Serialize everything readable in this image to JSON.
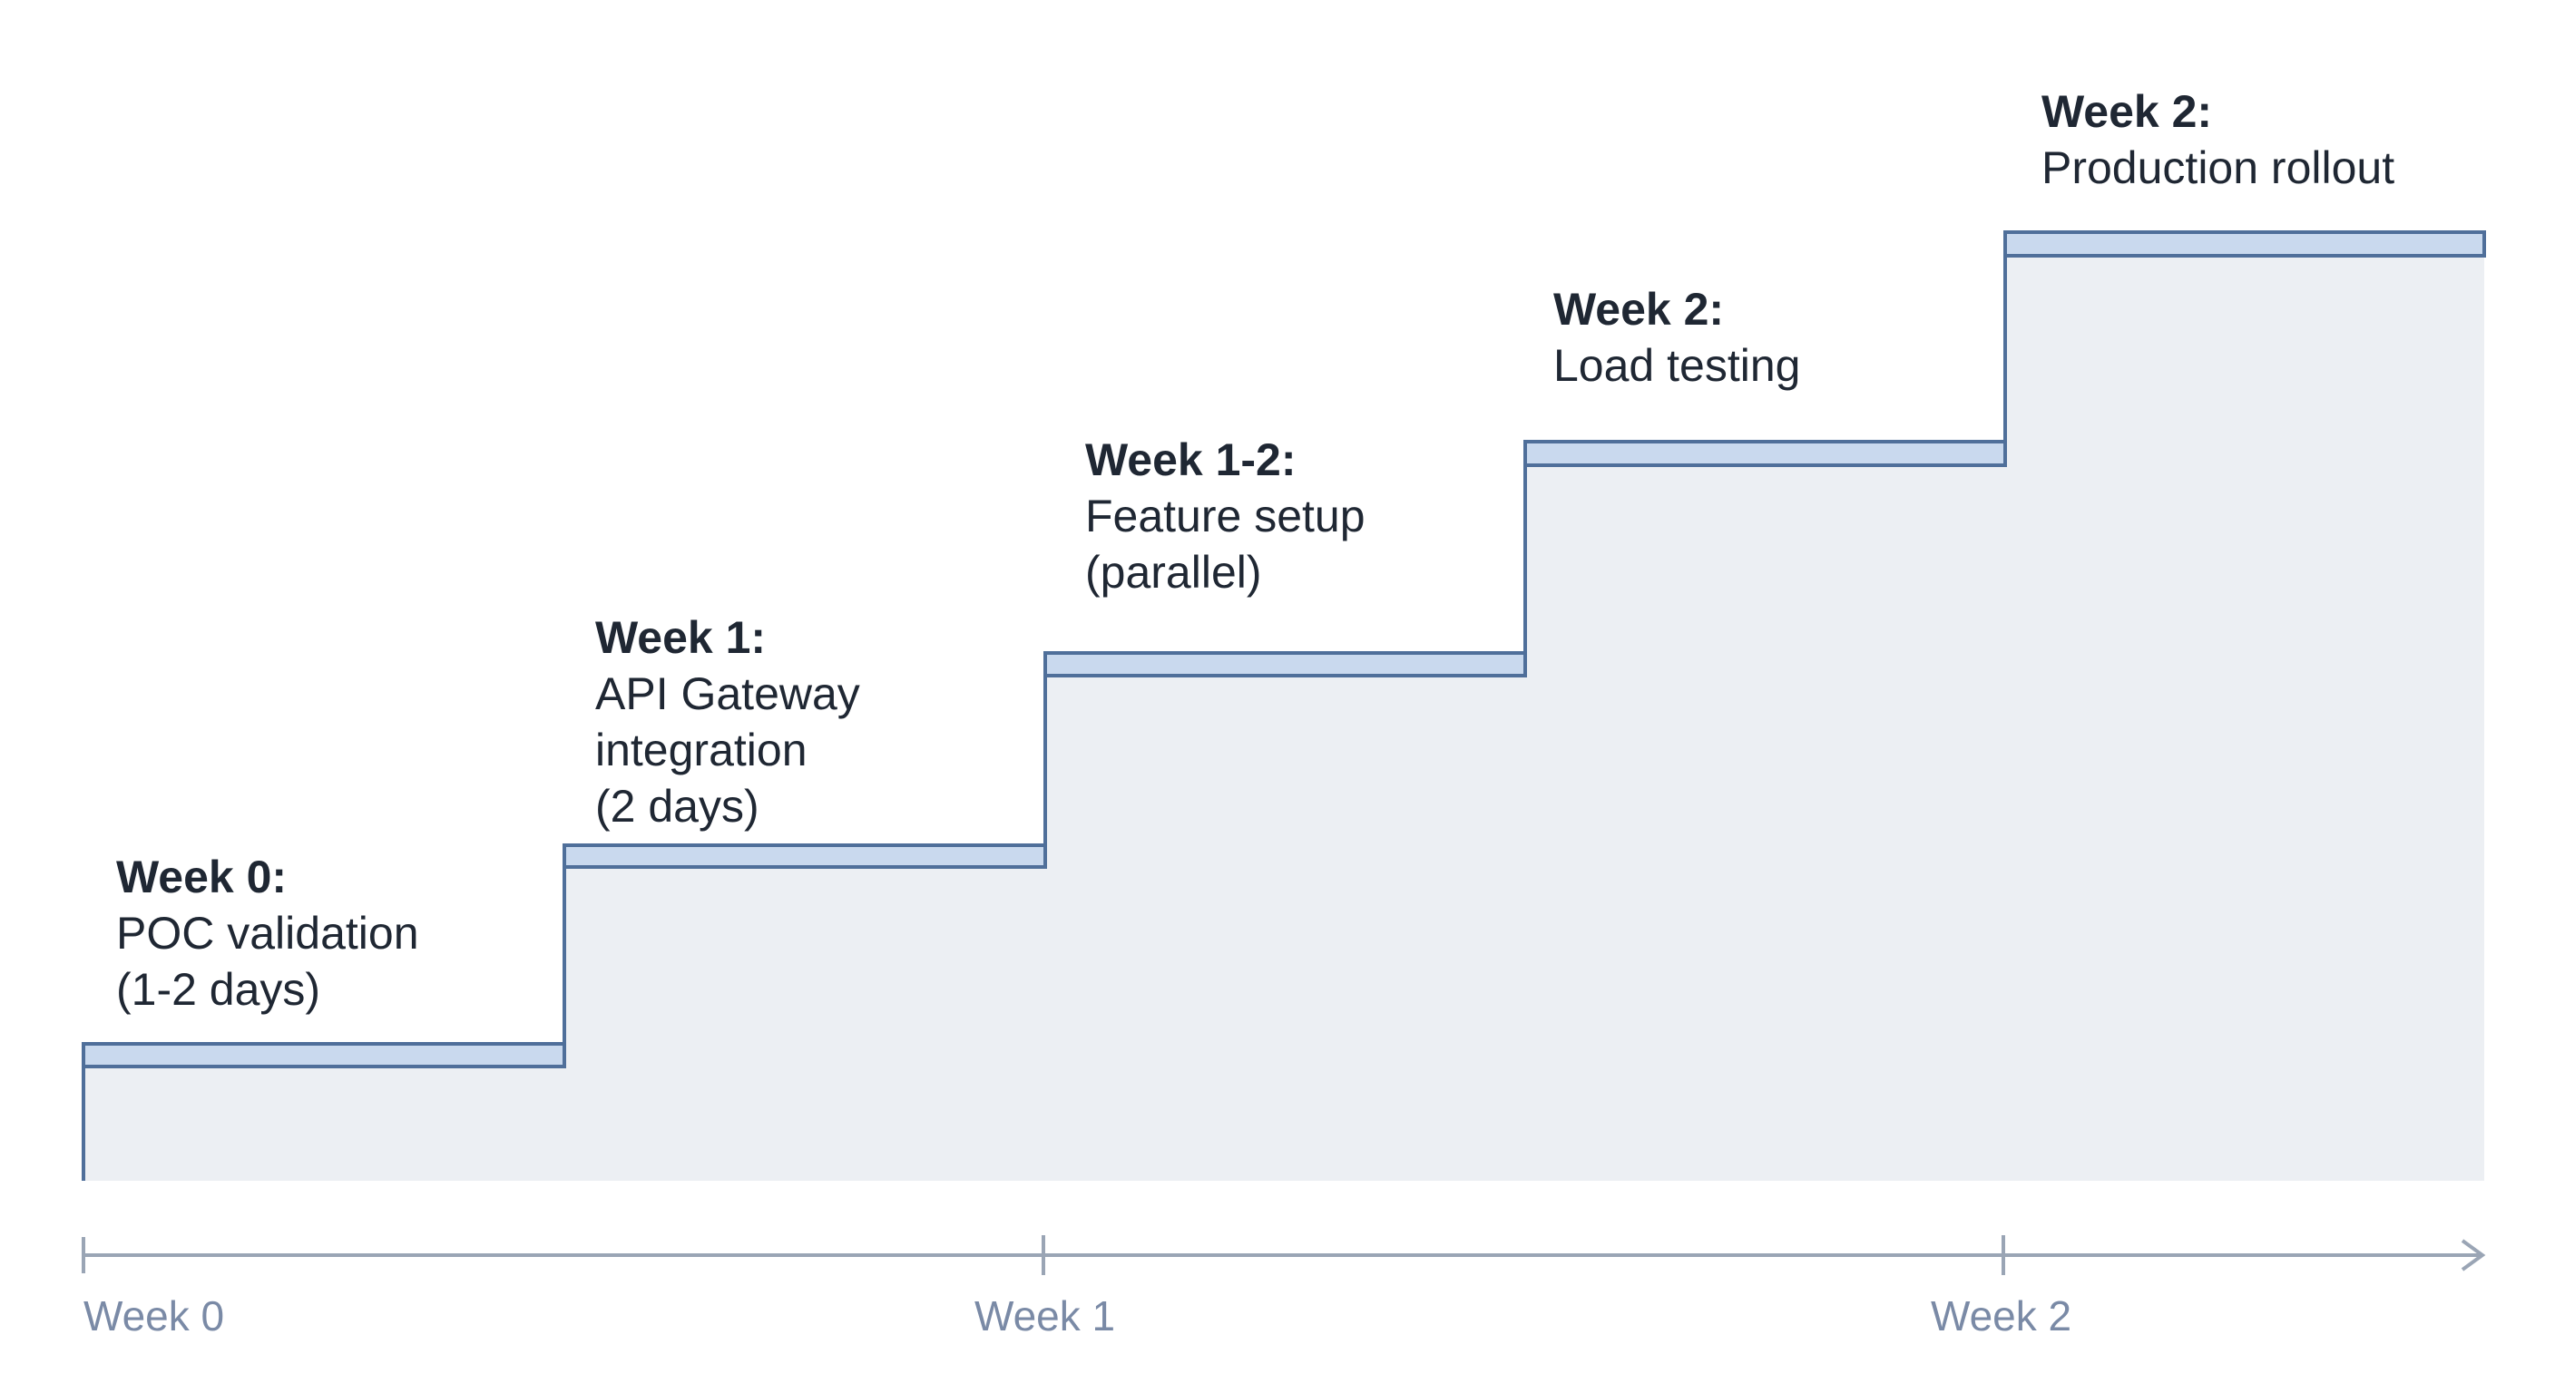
{
  "steps": [
    {
      "heading": "Week 0:",
      "lines": [
        "POC validation",
        "(1-2 days)"
      ]
    },
    {
      "heading": "Week 1:",
      "lines": [
        "API Gateway",
        "integration",
        "(2 days)"
      ]
    },
    {
      "heading": "Week 1-2:",
      "lines": [
        "Feature setup",
        "(parallel)"
      ]
    },
    {
      "heading": "Week 2:",
      "lines": [
        "Load testing"
      ]
    },
    {
      "heading": "Week 2:",
      "lines": [
        "Production rollout"
      ]
    }
  ],
  "axis": {
    "ticks": [
      "Week 0",
      "Week 1",
      "Week 2"
    ]
  },
  "colors": {
    "area_fill": "#eceff3",
    "step_fill": "#c9d9ee",
    "step_stroke": "#4f6f9a",
    "axis": "#9aa5b5",
    "tick_text": "#7a8aa6",
    "label_text": "#1f2733"
  }
}
